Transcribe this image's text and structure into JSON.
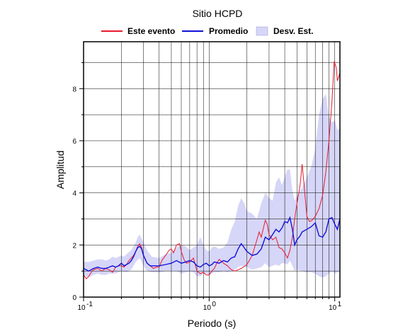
{
  "chart_data": {
    "type": "line",
    "title": "Sitio HCPD",
    "xlabel": "Periodo (s)",
    "ylabel": "Amplitud",
    "x_scale": "log",
    "xlim": [
      0.1,
      11
    ],
    "ylim": [
      0,
      9.8
    ],
    "grid": true,
    "legend_position": "top",
    "x_ticks": [
      {
        "value": 0.1,
        "base": "10",
        "exp": "-1"
      },
      {
        "value": 1,
        "base": "10",
        "exp": "0"
      },
      {
        "value": 10,
        "base": "10",
        "exp": "1"
      }
    ],
    "y_ticks": [
      {
        "value": 0,
        "label": "0"
      },
      {
        "value": 2,
        "label": "2"
      },
      {
        "value": 4,
        "label": "4"
      },
      {
        "value": 6,
        "label": "6"
      },
      {
        "value": 8,
        "label": "8"
      }
    ],
    "legend": [
      {
        "label": "Este evento",
        "kind": "line",
        "color": "#e8192c"
      },
      {
        "label": "Promedio",
        "kind": "line",
        "color": "#1010d8"
      },
      {
        "label": "Desv. Est.",
        "kind": "band",
        "color": "#d6d6f8"
      }
    ],
    "series": [
      {
        "name": "Este evento",
        "color": "#e8192c",
        "points": [
          [
            0.1,
            0.85
          ],
          [
            0.105,
            0.7
          ],
          [
            0.11,
            0.8
          ],
          [
            0.115,
            0.95
          ],
          [
            0.12,
            1.05
          ],
          [
            0.13,
            1.1
          ],
          [
            0.14,
            1.0
          ],
          [
            0.15,
            1.1
          ],
          [
            0.16,
            1.05
          ],
          [
            0.17,
            0.95
          ],
          [
            0.18,
            1.15
          ],
          [
            0.19,
            1.2
          ],
          [
            0.2,
            1.2
          ],
          [
            0.21,
            1.15
          ],
          [
            0.22,
            1.25
          ],
          [
            0.23,
            1.4
          ],
          [
            0.24,
            1.5
          ],
          [
            0.25,
            1.6
          ],
          [
            0.26,
            1.75
          ],
          [
            0.27,
            1.95
          ],
          [
            0.28,
            2.05
          ],
          [
            0.29,
            1.9
          ],
          [
            0.3,
            1.6
          ],
          [
            0.32,
            1.3
          ],
          [
            0.34,
            1.2
          ],
          [
            0.36,
            1.1
          ],
          [
            0.38,
            1.15
          ],
          [
            0.4,
            1.15
          ],
          [
            0.42,
            1.4
          ],
          [
            0.45,
            1.6
          ],
          [
            0.48,
            1.8
          ],
          [
            0.5,
            1.85
          ],
          [
            0.52,
            1.7
          ],
          [
            0.55,
            2.0
          ],
          [
            0.58,
            2.05
          ],
          [
            0.6,
            1.75
          ],
          [
            0.63,
            1.45
          ],
          [
            0.66,
            1.3
          ],
          [
            0.7,
            1.35
          ],
          [
            0.75,
            1.5
          ],
          [
            0.8,
            1.0
          ],
          [
            0.85,
            0.9
          ],
          [
            0.9,
            0.95
          ],
          [
            0.95,
            0.85
          ],
          [
            1.0,
            0.85
          ],
          [
            1.05,
            1.0
          ],
          [
            1.1,
            1.1
          ],
          [
            1.15,
            1.3
          ],
          [
            1.2,
            1.45
          ],
          [
            1.3,
            1.3
          ],
          [
            1.4,
            1.2
          ],
          [
            1.5,
            1.05
          ],
          [
            1.6,
            1.0
          ],
          [
            1.7,
            1.05
          ],
          [
            1.8,
            1.1
          ],
          [
            2.0,
            1.25
          ],
          [
            2.2,
            1.6
          ],
          [
            2.4,
            2.2
          ],
          [
            2.5,
            2.5
          ],
          [
            2.6,
            2.3
          ],
          [
            2.8,
            2.95
          ],
          [
            2.9,
            2.8
          ],
          [
            3.0,
            2.4
          ],
          [
            3.2,
            2.2
          ],
          [
            3.4,
            2.3
          ],
          [
            3.6,
            1.9
          ],
          [
            3.8,
            1.85
          ],
          [
            4.0,
            1.7
          ],
          [
            4.2,
            1.5
          ],
          [
            4.4,
            1.8
          ],
          [
            4.6,
            2.3
          ],
          [
            4.8,
            3.0
          ],
          [
            5.0,
            3.6
          ],
          [
            5.3,
            4.3
          ],
          [
            5.5,
            5.1
          ],
          [
            5.7,
            4.3
          ],
          [
            6.0,
            3.1
          ],
          [
            6.3,
            2.9
          ],
          [
            6.6,
            2.95
          ],
          [
            7.0,
            3.1
          ],
          [
            7.5,
            3.4
          ],
          [
            8.0,
            3.9
          ],
          [
            8.5,
            4.8
          ],
          [
            9.0,
            6.0
          ],
          [
            9.5,
            7.5
          ],
          [
            9.9,
            9.05
          ],
          [
            10.3,
            8.8
          ],
          [
            10.5,
            8.3
          ],
          [
            11.0,
            8.6
          ]
        ]
      },
      {
        "name": "Promedio",
        "color": "#1010d8",
        "points": [
          [
            0.1,
            1.1
          ],
          [
            0.11,
            1.0
          ],
          [
            0.12,
            1.1
          ],
          [
            0.13,
            1.15
          ],
          [
            0.14,
            1.1
          ],
          [
            0.15,
            1.1
          ],
          [
            0.16,
            1.15
          ],
          [
            0.17,
            1.2
          ],
          [
            0.18,
            1.15
          ],
          [
            0.19,
            1.2
          ],
          [
            0.2,
            1.3
          ],
          [
            0.21,
            1.2
          ],
          [
            0.22,
            1.25
          ],
          [
            0.23,
            1.3
          ],
          [
            0.24,
            1.4
          ],
          [
            0.25,
            1.55
          ],
          [
            0.26,
            1.75
          ],
          [
            0.27,
            1.9
          ],
          [
            0.28,
            1.95
          ],
          [
            0.29,
            1.85
          ],
          [
            0.3,
            1.6
          ],
          [
            0.32,
            1.3
          ],
          [
            0.34,
            1.2
          ],
          [
            0.36,
            1.2
          ],
          [
            0.4,
            1.2
          ],
          [
            0.45,
            1.25
          ],
          [
            0.5,
            1.3
          ],
          [
            0.55,
            1.4
          ],
          [
            0.6,
            1.3
          ],
          [
            0.65,
            1.35
          ],
          [
            0.7,
            1.4
          ],
          [
            0.75,
            1.35
          ],
          [
            0.8,
            1.2
          ],
          [
            0.85,
            1.15
          ],
          [
            0.9,
            1.25
          ],
          [
            0.95,
            1.3
          ],
          [
            1.0,
            1.2
          ],
          [
            1.05,
            1.25
          ],
          [
            1.1,
            1.35
          ],
          [
            1.2,
            1.3
          ],
          [
            1.3,
            1.4
          ],
          [
            1.4,
            1.35
          ],
          [
            1.5,
            1.5
          ],
          [
            1.6,
            1.55
          ],
          [
            1.7,
            1.85
          ],
          [
            1.8,
            2.05
          ],
          [
            1.9,
            1.9
          ],
          [
            2.0,
            1.75
          ],
          [
            2.2,
            1.6
          ],
          [
            2.4,
            1.65
          ],
          [
            2.6,
            1.85
          ],
          [
            2.8,
            2.3
          ],
          [
            3.0,
            2.2
          ],
          [
            3.2,
            2.4
          ],
          [
            3.4,
            2.6
          ],
          [
            3.6,
            2.5
          ],
          [
            3.8,
            2.65
          ],
          [
            4.0,
            2.9
          ],
          [
            4.2,
            2.85
          ],
          [
            4.4,
            3.05
          ],
          [
            4.6,
            2.6
          ],
          [
            4.8,
            2.0
          ],
          [
            5.0,
            2.2
          ],
          [
            5.3,
            2.35
          ],
          [
            5.5,
            2.5
          ],
          [
            6.0,
            2.6
          ],
          [
            6.5,
            2.7
          ],
          [
            7.0,
            2.85
          ],
          [
            7.5,
            2.35
          ],
          [
            8.0,
            2.3
          ],
          [
            8.5,
            2.5
          ],
          [
            9.0,
            3.0
          ],
          [
            9.5,
            3.05
          ],
          [
            10.0,
            2.8
          ],
          [
            10.5,
            2.6
          ],
          [
            11.0,
            3.0
          ]
        ]
      }
    ],
    "band": {
      "name": "Desv. Est.",
      "color": "#d6d6f8",
      "upper": [
        [
          0.1,
          1.35
        ],
        [
          0.11,
          1.35
        ],
        [
          0.12,
          1.4
        ],
        [
          0.13,
          1.45
        ],
        [
          0.14,
          1.45
        ],
        [
          0.15,
          1.4
        ],
        [
          0.16,
          1.45
        ],
        [
          0.17,
          1.55
        ],
        [
          0.18,
          1.5
        ],
        [
          0.19,
          1.55
        ],
        [
          0.2,
          1.6
        ],
        [
          0.21,
          1.55
        ],
        [
          0.22,
          1.65
        ],
        [
          0.24,
          1.8
        ],
        [
          0.26,
          2.1
        ],
        [
          0.27,
          2.3
        ],
        [
          0.28,
          2.4
        ],
        [
          0.3,
          2.1
        ],
        [
          0.32,
          1.8
        ],
        [
          0.35,
          1.55
        ],
        [
          0.4,
          1.5
        ],
        [
          0.45,
          1.65
        ],
        [
          0.5,
          1.7
        ],
        [
          0.55,
          1.9
        ],
        [
          0.6,
          2.0
        ],
        [
          0.65,
          1.95
        ],
        [
          0.7,
          1.8
        ],
        [
          0.75,
          1.9
        ],
        [
          0.8,
          2.0
        ],
        [
          0.85,
          2.3
        ],
        [
          0.9,
          2.0
        ],
        [
          0.95,
          1.8
        ],
        [
          1.0,
          1.75
        ],
        [
          1.05,
          1.9
        ],
        [
          1.1,
          1.95
        ],
        [
          1.2,
          1.85
        ],
        [
          1.3,
          1.9
        ],
        [
          1.4,
          2.1
        ],
        [
          1.5,
          2.6
        ],
        [
          1.6,
          2.9
        ],
        [
          1.7,
          3.5
        ],
        [
          1.8,
          3.8
        ],
        [
          1.9,
          3.6
        ],
        [
          2.0,
          3.3
        ],
        [
          2.2,
          3.2
        ],
        [
          2.4,
          3.0
        ],
        [
          2.6,
          3.6
        ],
        [
          2.8,
          4.0
        ],
        [
          3.0,
          3.8
        ],
        [
          3.2,
          3.7
        ],
        [
          3.4,
          4.4
        ],
        [
          3.6,
          4.6
        ],
        [
          3.8,
          4.3
        ],
        [
          4.0,
          4.6
        ],
        [
          4.2,
          4.9
        ],
        [
          4.4,
          4.9
        ],
        [
          4.6,
          4.1
        ],
        [
          4.8,
          3.7
        ],
        [
          5.0,
          3.9
        ],
        [
          5.5,
          4.2
        ],
        [
          6.0,
          4.6
        ],
        [
          6.5,
          5.0
        ],
        [
          7.0,
          5.7
        ],
        [
          7.5,
          7.0
        ],
        [
          8.0,
          7.6
        ],
        [
          8.5,
          7.8
        ],
        [
          9.0,
          6.9
        ],
        [
          9.5,
          6.7
        ],
        [
          10.0,
          6.8
        ],
        [
          10.5,
          6.4
        ],
        [
          11.0,
          6.5
        ]
      ],
      "lower": [
        [
          0.1,
          0.85
        ],
        [
          0.11,
          0.75
        ],
        [
          0.12,
          0.85
        ],
        [
          0.13,
          0.9
        ],
        [
          0.14,
          0.85
        ],
        [
          0.15,
          0.85
        ],
        [
          0.16,
          0.9
        ],
        [
          0.17,
          0.9
        ],
        [
          0.18,
          0.9
        ],
        [
          0.19,
          0.95
        ],
        [
          0.2,
          1.0
        ],
        [
          0.22,
          0.95
        ],
        [
          0.24,
          1.05
        ],
        [
          0.26,
          1.35
        ],
        [
          0.28,
          1.5
        ],
        [
          0.3,
          1.2
        ],
        [
          0.32,
          1.0
        ],
        [
          0.35,
          0.95
        ],
        [
          0.4,
          0.95
        ],
        [
          0.45,
          1.0
        ],
        [
          0.5,
          1.0
        ],
        [
          0.55,
          1.0
        ],
        [
          0.6,
          0.9
        ],
        [
          0.65,
          0.95
        ],
        [
          0.7,
          1.0
        ],
        [
          0.75,
          0.95
        ],
        [
          0.8,
          0.8
        ],
        [
          0.85,
          0.8
        ],
        [
          0.9,
          0.9
        ],
        [
          0.95,
          0.9
        ],
        [
          1.0,
          0.85
        ],
        [
          1.1,
          0.95
        ],
        [
          1.2,
          0.95
        ],
        [
          1.3,
          1.0
        ],
        [
          1.4,
          0.95
        ],
        [
          1.5,
          1.0
        ],
        [
          1.6,
          1.05
        ],
        [
          1.7,
          1.15
        ],
        [
          1.8,
          1.2
        ],
        [
          2.0,
          1.15
        ],
        [
          2.2,
          1.05
        ],
        [
          2.4,
          1.1
        ],
        [
          2.6,
          1.15
        ],
        [
          2.8,
          1.3
        ],
        [
          3.0,
          1.15
        ],
        [
          3.2,
          1.2
        ],
        [
          3.4,
          1.25
        ],
        [
          3.6,
          1.2
        ],
        [
          3.8,
          1.3
        ],
        [
          4.0,
          1.3
        ],
        [
          4.2,
          1.25
        ],
        [
          4.4,
          1.4
        ],
        [
          4.6,
          1.2
        ],
        [
          4.8,
          1.0
        ],
        [
          5.0,
          1.05
        ],
        [
          5.5,
          1.0
        ],
        [
          6.0,
          0.95
        ],
        [
          6.5,
          0.95
        ],
        [
          7.0,
          0.9
        ],
        [
          7.5,
          0.8
        ],
        [
          8.0,
          0.75
        ],
        [
          8.5,
          0.8
        ],
        [
          9.0,
          0.9
        ],
        [
          9.5,
          1.0
        ],
        [
          10.0,
          0.9
        ],
        [
          10.5,
          0.95
        ],
        [
          11.0,
          1.0
        ]
      ]
    }
  }
}
